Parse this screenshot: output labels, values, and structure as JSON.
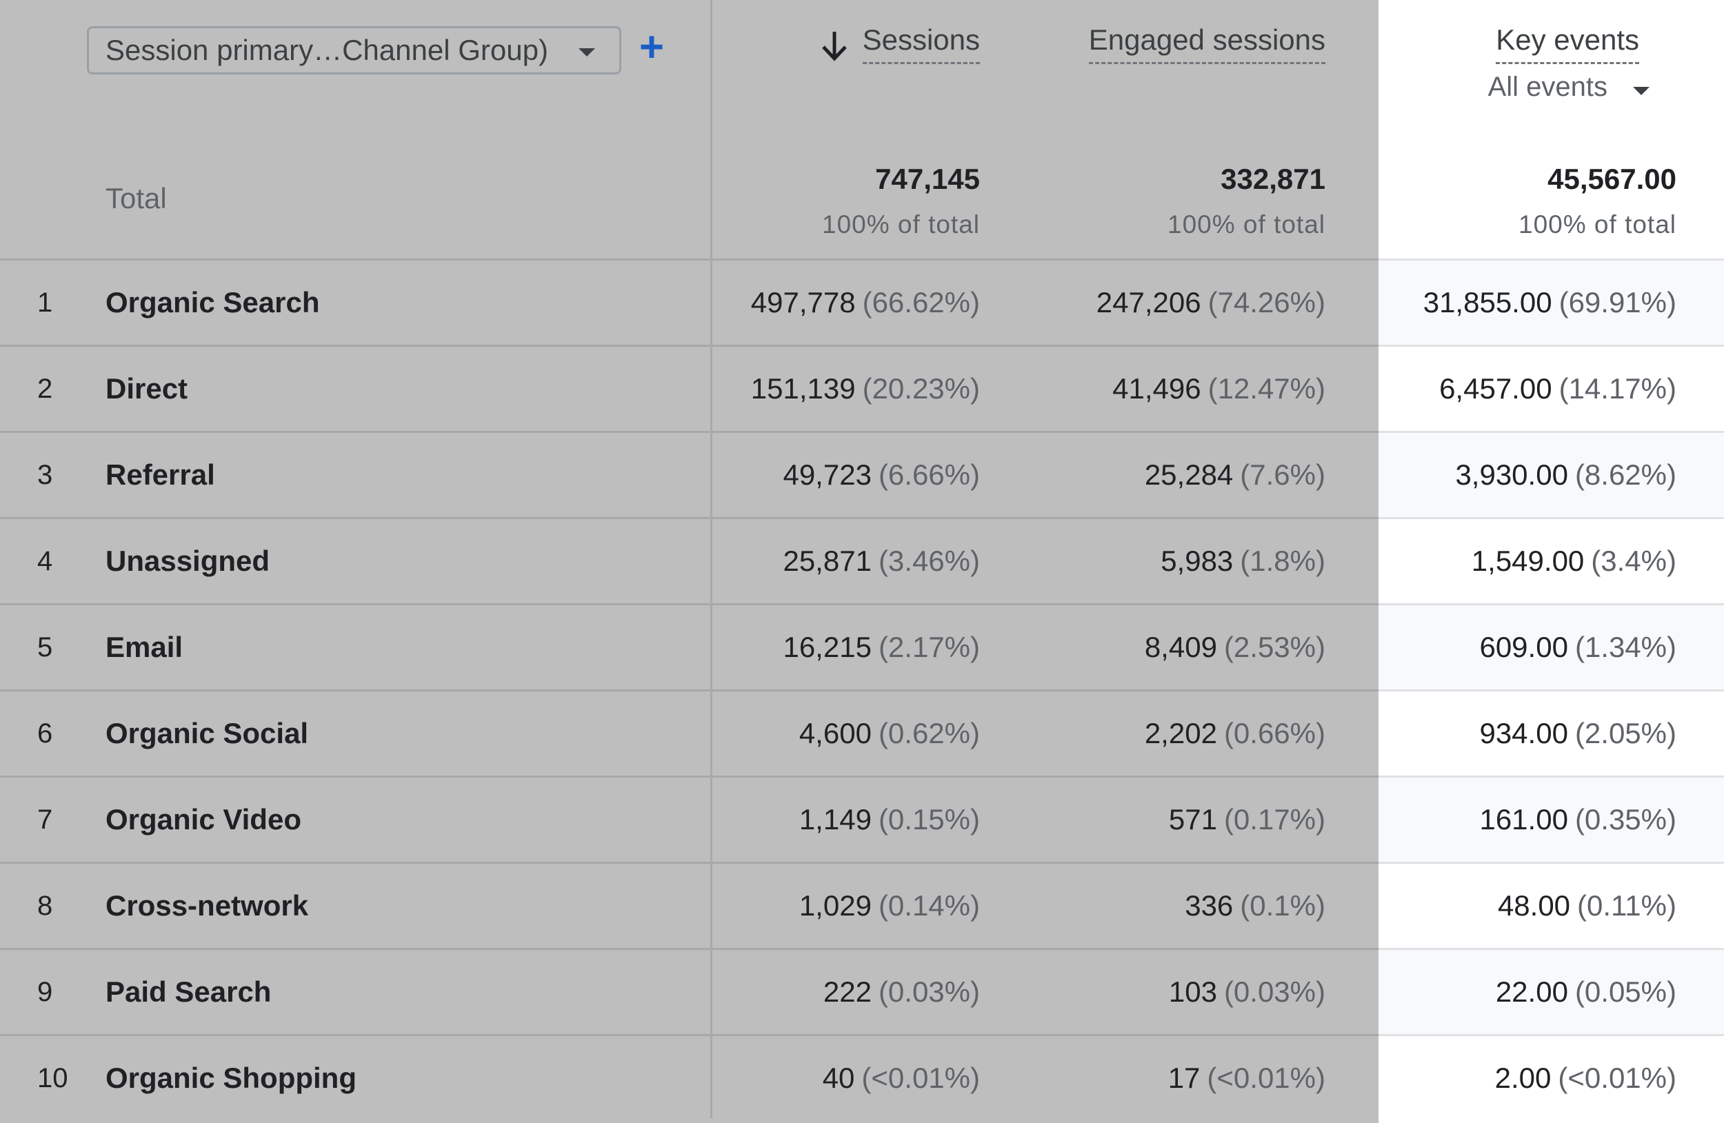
{
  "dimension": {
    "label": "Session primary…Channel Group)",
    "add_label": "+"
  },
  "columns": {
    "sessions": {
      "label": "Sessions"
    },
    "engaged": {
      "label": "Engaged sessions"
    },
    "key_events": {
      "label": "Key events",
      "filter": "All events"
    }
  },
  "totals": {
    "label": "Total",
    "sessions": "747,145",
    "engaged": "332,871",
    "key_events": "45,567.00",
    "pct_label": "100% of total"
  },
  "rows": [
    {
      "rank": "1",
      "channel": "Organic Search",
      "sessions": "497,778",
      "sessions_pct": "(66.62%)",
      "engaged": "247,206",
      "engaged_pct": "(74.26%)",
      "key_events": "31,855.00",
      "key_events_pct": "(69.91%)"
    },
    {
      "rank": "2",
      "channel": "Direct",
      "sessions": "151,139",
      "sessions_pct": "(20.23%)",
      "engaged": "41,496",
      "engaged_pct": "(12.47%)",
      "key_events": "6,457.00",
      "key_events_pct": "(14.17%)"
    },
    {
      "rank": "3",
      "channel": "Referral",
      "sessions": "49,723",
      "sessions_pct": "(6.66%)",
      "engaged": "25,284",
      "engaged_pct": "(7.6%)",
      "key_events": "3,930.00",
      "key_events_pct": "(8.62%)"
    },
    {
      "rank": "4",
      "channel": "Unassigned",
      "sessions": "25,871",
      "sessions_pct": "(3.46%)",
      "engaged": "5,983",
      "engaged_pct": "(1.8%)",
      "key_events": "1,549.00",
      "key_events_pct": "(3.4%)"
    },
    {
      "rank": "5",
      "channel": "Email",
      "sessions": "16,215",
      "sessions_pct": "(2.17%)",
      "engaged": "8,409",
      "engaged_pct": "(2.53%)",
      "key_events": "609.00",
      "key_events_pct": "(1.34%)"
    },
    {
      "rank": "6",
      "channel": "Organic Social",
      "sessions": "4,600",
      "sessions_pct": "(0.62%)",
      "engaged": "2,202",
      "engaged_pct": "(0.66%)",
      "key_events": "934.00",
      "key_events_pct": "(2.05%)"
    },
    {
      "rank": "7",
      "channel": "Organic Video",
      "sessions": "1,149",
      "sessions_pct": "(0.15%)",
      "engaged": "571",
      "engaged_pct": "(0.17%)",
      "key_events": "161.00",
      "key_events_pct": "(0.35%)"
    },
    {
      "rank": "8",
      "channel": "Cross-network",
      "sessions": "1,029",
      "sessions_pct": "(0.14%)",
      "engaged": "336",
      "engaged_pct": "(0.1%)",
      "key_events": "48.00",
      "key_events_pct": "(0.11%)"
    },
    {
      "rank": "9",
      "channel": "Paid Search",
      "sessions": "222",
      "sessions_pct": "(0.03%)",
      "engaged": "103",
      "engaged_pct": "(0.03%)",
      "key_events": "22.00",
      "key_events_pct": "(0.05%)"
    },
    {
      "rank": "10",
      "channel": "Organic Shopping",
      "sessions": "40",
      "sessions_pct": "(<0.01%)",
      "engaged": "17",
      "engaged_pct": "(<0.01%)",
      "key_events": "2.00",
      "key_events_pct": "(<0.01%)"
    }
  ],
  "colors": {
    "plus_accent": "#1a5fc6",
    "overlay_gray": "#bebebe",
    "stripe": "#f8f9fa"
  }
}
